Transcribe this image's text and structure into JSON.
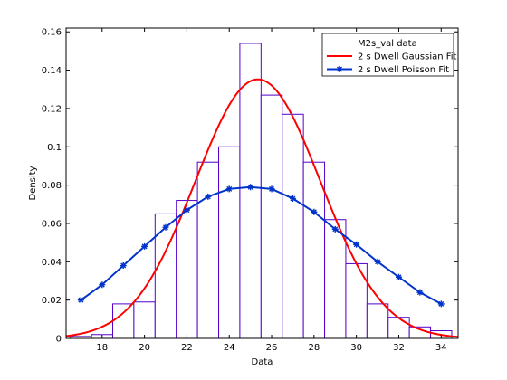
{
  "chart_data": {
    "type": "bar",
    "title": "",
    "xlabel": "Data",
    "ylabel": "Density",
    "xlim": [
      16.3,
      34.8
    ],
    "ylim": [
      0,
      0.162
    ],
    "xticks": [
      18,
      20,
      22,
      24,
      26,
      28,
      30,
      32,
      34
    ],
    "yticks": [
      0,
      0.02,
      0.04,
      0.06,
      0.08,
      0.1,
      0.12,
      0.14,
      0.16
    ],
    "ytick_labels": [
      "0",
      "0.02",
      "0.04",
      "0.06",
      "0.08",
      "0.1",
      "0.12",
      "0.14",
      "0.16"
    ],
    "grid": false,
    "legend_position": "top-right",
    "histogram": {
      "name": "M2s_val data",
      "color": "#5500cc",
      "bin_width": 1,
      "bins": [
        {
          "left": 16.5,
          "density": 0.001
        },
        {
          "left": 17.5,
          "density": 0.002
        },
        {
          "left": 18.5,
          "density": 0.018
        },
        {
          "left": 19.5,
          "density": 0.019
        },
        {
          "left": 20.5,
          "density": 0.065
        },
        {
          "left": 21.5,
          "density": 0.072
        },
        {
          "left": 22.5,
          "density": 0.092
        },
        {
          "left": 23.5,
          "density": 0.1
        },
        {
          "left": 24.5,
          "density": 0.154
        },
        {
          "left": 25.5,
          "density": 0.127
        },
        {
          "left": 26.5,
          "density": 0.117
        },
        {
          "left": 27.5,
          "density": 0.092
        },
        {
          "left": 28.5,
          "density": 0.062
        },
        {
          "left": 29.5,
          "density": 0.039
        },
        {
          "left": 30.5,
          "density": 0.018
        },
        {
          "left": 31.5,
          "density": 0.011
        },
        {
          "left": 32.5,
          "density": 0.006
        },
        {
          "left": 33.5,
          "density": 0.004
        }
      ]
    },
    "gaussian_fit": {
      "name": "2 s Dwell Gaussian Fit",
      "color": "#ff0000",
      "mean": 25.35,
      "sigma": 2.95,
      "x_range": [
        16.3,
        34.8
      ]
    },
    "poisson_fit": {
      "name": "2 s Dwell Poisson Fit",
      "color": "#0033cc",
      "x": [
        17,
        18,
        19,
        20,
        21,
        22,
        23,
        24,
        25,
        26,
        27,
        28,
        29,
        30,
        31,
        32,
        33,
        34
      ],
      "values": [
        0.02,
        0.028,
        0.038,
        0.048,
        0.058,
        0.067,
        0.074,
        0.078,
        0.079,
        0.078,
        0.073,
        0.066,
        0.057,
        0.049,
        0.04,
        0.032,
        0.024,
        0.018
      ]
    }
  }
}
